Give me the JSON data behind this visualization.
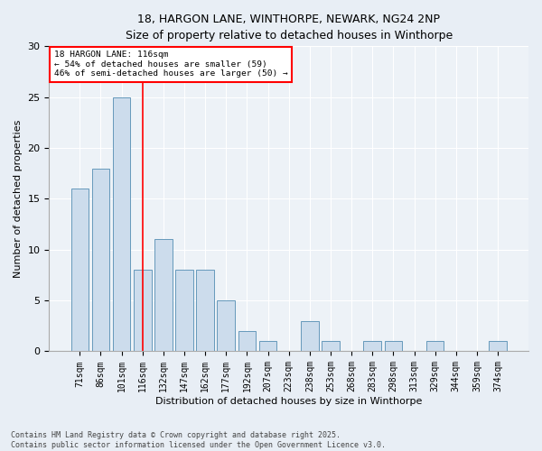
{
  "title1": "18, HARGON LANE, WINTHORPE, NEWARK, NG24 2NP",
  "title2": "Size of property relative to detached houses in Winthorpe",
  "xlabel": "Distribution of detached houses by size in Winthorpe",
  "ylabel": "Number of detached properties",
  "categories": [
    "71sqm",
    "86sqm",
    "101sqm",
    "116sqm",
    "132sqm",
    "147sqm",
    "162sqm",
    "177sqm",
    "192sqm",
    "207sqm",
    "223sqm",
    "238sqm",
    "253sqm",
    "268sqm",
    "283sqm",
    "298sqm",
    "313sqm",
    "329sqm",
    "344sqm",
    "359sqm",
    "374sqm"
  ],
  "values": [
    16,
    18,
    25,
    8,
    11,
    8,
    8,
    5,
    2,
    1,
    0,
    3,
    1,
    0,
    1,
    1,
    0,
    1,
    0,
    0,
    1
  ],
  "bar_color": "#ccdcec",
  "bar_edge_color": "#6699bb",
  "vline_x_index": 3,
  "vline_color": "red",
  "annotation_text": "18 HARGON LANE: 116sqm\n← 54% of detached houses are smaller (59)\n46% of semi-detached houses are larger (50) →",
  "annotation_box_color": "white",
  "annotation_box_edge_color": "red",
  "ylim": [
    0,
    30
  ],
  "yticks": [
    0,
    5,
    10,
    15,
    20,
    25,
    30
  ],
  "footer1": "Contains HM Land Registry data © Crown copyright and database right 2025.",
  "footer2": "Contains public sector information licensed under the Open Government Licence v3.0.",
  "bg_color": "#e8eef5",
  "plot_bg_color": "#edf2f7",
  "title_fontsize": 9,
  "axis_label_fontsize": 8,
  "tick_fontsize": 7,
  "footer_fontsize": 6
}
